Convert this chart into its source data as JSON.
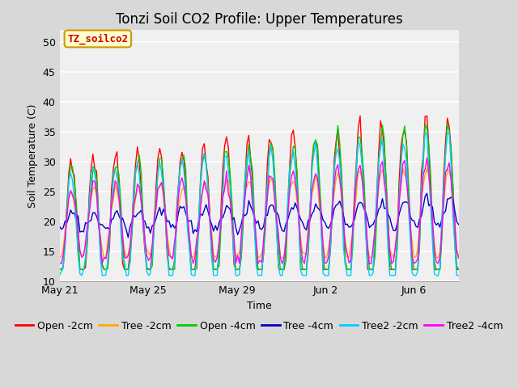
{
  "title": "Tonzi Soil CO2 Profile: Upper Temperatures",
  "xlabel": "Time",
  "ylabel": "Soil Temperature (C)",
  "ylim": [
    10,
    52
  ],
  "yticks": [
    10,
    15,
    20,
    25,
    30,
    35,
    40,
    45,
    50
  ],
  "fig_bg_color": "#d8d8d8",
  "plot_bg_color": "#f0f0f0",
  "annotation_text": "TZ_soilco2",
  "annotation_color": "#cc0000",
  "annotation_bg": "#ffffcc",
  "annotation_border": "#cc9900",
  "series": [
    {
      "label": "Open -2cm",
      "color": "#ff0000"
    },
    {
      "label": "Tree -2cm",
      "color": "#ffaa00"
    },
    {
      "label": "Open -4cm",
      "color": "#00cc00"
    },
    {
      "label": "Tree -4cm",
      "color": "#0000cc"
    },
    {
      "label": "Tree2 -2cm",
      "color": "#00ccff"
    },
    {
      "label": "Tree2 -4cm",
      "color": "#ff00ff"
    }
  ],
  "xtick_labels": [
    "May 21",
    "May 25",
    "May 29",
    "Jun 2",
    "Jun 6"
  ],
  "legend_fontsize": 9,
  "title_fontsize": 12
}
